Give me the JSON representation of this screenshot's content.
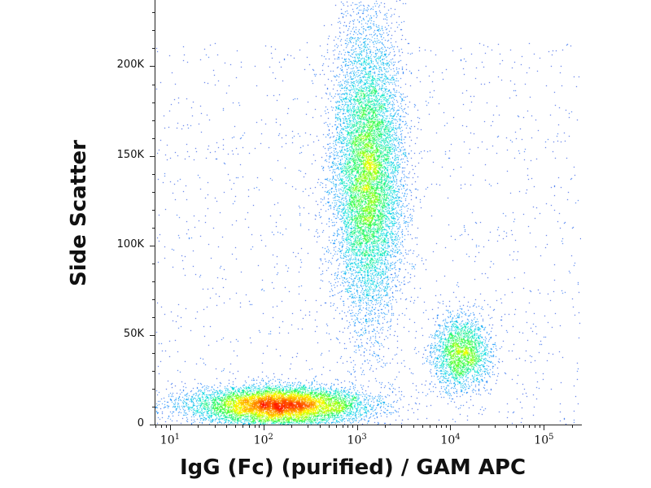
{
  "chart_data": {
    "type": "scatter",
    "style": "density",
    "xlabel": "IgG (Fc) (purified) / GAM APC",
    "ylabel": "Side Scatter",
    "xscale": "log",
    "xlim": [
      7,
      250000
    ],
    "ylim": [
      0,
      237000
    ],
    "yticks": [
      {
        "value": 0,
        "label": "0"
      },
      {
        "value": 50000,
        "label": "50K"
      },
      {
        "value": 100000,
        "label": "100K"
      },
      {
        "value": 150000,
        "label": "150K"
      },
      {
        "value": 200000,
        "label": "200K"
      }
    ],
    "xticks": [
      {
        "value": 10,
        "base": "10",
        "exp": "1"
      },
      {
        "value": 100,
        "base": "10",
        "exp": "2"
      },
      {
        "value": 1000,
        "base": "10",
        "exp": "3"
      },
      {
        "value": 10000,
        "base": "10",
        "exp": "4"
      },
      {
        "value": 100000,
        "base": "10",
        "exp": "5"
      }
    ],
    "populations": [
      {
        "center_x": 150,
        "center_y": 11000,
        "spread_log_x": 0.45,
        "spread_y": 5000,
        "count": 9000
      },
      {
        "center_x": 1300,
        "center_y": 140000,
        "spread_log_x": 0.18,
        "spread_y": 40000,
        "count": 11000
      },
      {
        "center_x": 13000,
        "center_y": 40000,
        "spread_log_x": 0.15,
        "spread_y": 10000,
        "count": 2600
      }
    ],
    "grid": false,
    "colormap": [
      "#0000c8",
      "#0080ff",
      "#00e0e0",
      "#40ff40",
      "#ffff00",
      "#ff8000",
      "#ff0000"
    ]
  }
}
